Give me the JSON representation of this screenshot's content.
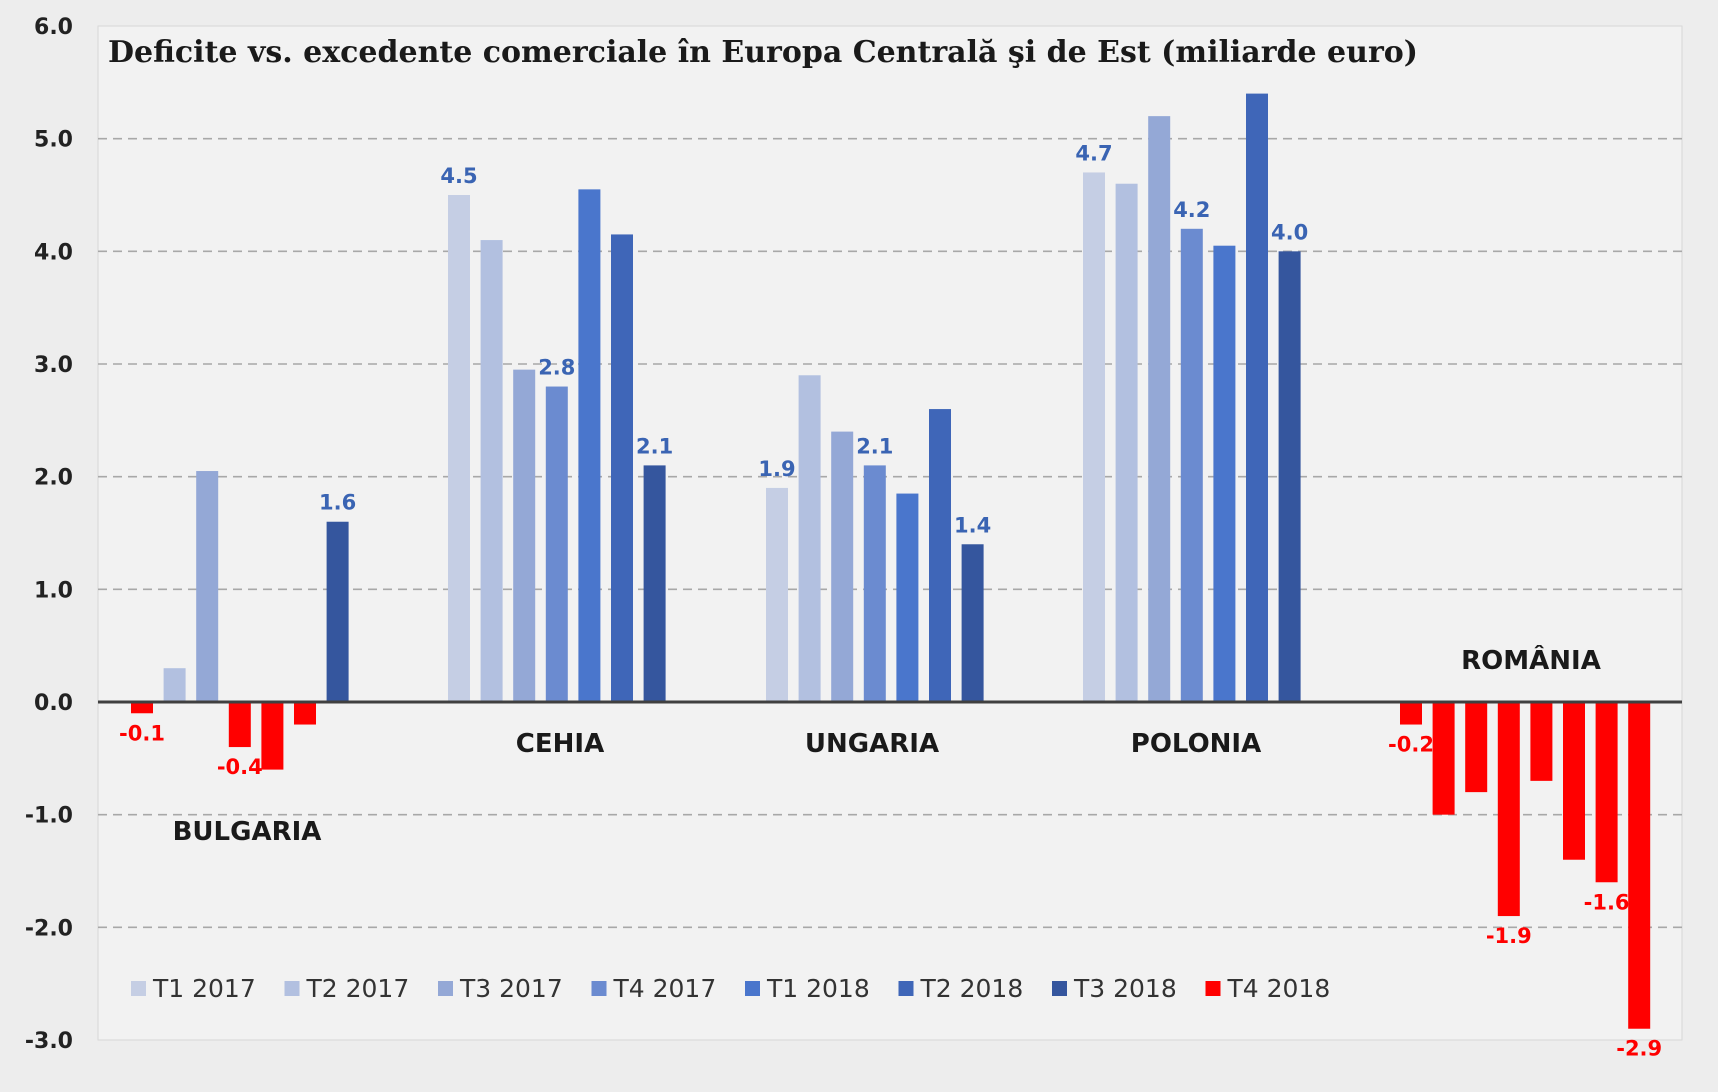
{
  "chart_data": {
    "type": "bar",
    "title": "Deficite vs. excedente comerciale în Europa Centrală şi de Est (miliarde euro)",
    "ylim": [
      -3.0,
      6.0
    ],
    "yticks": [
      "6.0",
      "5.0",
      "4.0",
      "3.0",
      "2.0",
      "1.0",
      "0.0",
      "-1.0",
      "-2.0",
      "-3.0"
    ],
    "grid": true,
    "legend_position": "bottom-left",
    "negative_color": "#ff0000",
    "categories": [
      "BULGARIA",
      "CEHIA",
      "UNGARIA",
      "POLONIA",
      "ROMÂNIA"
    ],
    "series": [
      {
        "name": "T1 2017",
        "color": "#c5cee4",
        "values": [
          -0.1,
          4.5,
          1.9,
          4.7,
          -0.2
        ]
      },
      {
        "name": "T2 2017",
        "color": "#b2c0e0",
        "values": [
          0.3,
          4.1,
          2.9,
          4.6,
          -1.0
        ]
      },
      {
        "name": "T3 2017",
        "color": "#94a8d6",
        "values": [
          2.05,
          2.95,
          2.4,
          5.2,
          -0.8
        ]
      },
      {
        "name": "T4 2017",
        "color": "#6b8bd0",
        "values": [
          -0.4,
          2.8,
          2.1,
          4.2,
          -1.9
        ]
      },
      {
        "name": "T1 2018",
        "color": "#4a76cc",
        "values": [
          -0.6,
          4.55,
          1.85,
          4.05,
          -0.7
        ]
      },
      {
        "name": "T2 2018",
        "color": "#3f66b8",
        "values": [
          -0.2,
          4.15,
          2.6,
          5.4,
          -1.4
        ]
      },
      {
        "name": "T3 2018",
        "color": "#35569e",
        "values": [
          1.6,
          2.1,
          1.4,
          4.0,
          -1.6
        ]
      },
      {
        "name": "T4 2018",
        "color": "#ff0000",
        "values": [
          null,
          null,
          null,
          null,
          -2.9
        ]
      }
    ],
    "data_labels": [
      {
        "category": "BULGARIA",
        "series": "T1 2017",
        "text": "-0.1"
      },
      {
        "category": "BULGARIA",
        "series": "T4 2017",
        "text": "-0.4"
      },
      {
        "category": "BULGARIA",
        "series": "T3 2018",
        "text": "1.6"
      },
      {
        "category": "CEHIA",
        "series": "T1 2017",
        "text": "4.5"
      },
      {
        "category": "CEHIA",
        "series": "T4 2017",
        "text": "2.8"
      },
      {
        "category": "CEHIA",
        "series": "T3 2018",
        "text": "2.1"
      },
      {
        "category": "UNGARIA",
        "series": "T1 2017",
        "text": "1.9"
      },
      {
        "category": "UNGARIA",
        "series": "T4 2017",
        "text": "2.1"
      },
      {
        "category": "UNGARIA",
        "series": "T3 2018",
        "text": "1.4"
      },
      {
        "category": "POLONIA",
        "series": "T1 2017",
        "text": "4.7"
      },
      {
        "category": "POLONIA",
        "series": "T4 2017",
        "text": "4.2"
      },
      {
        "category": "POLONIA",
        "series": "T3 2018",
        "text": "4.0"
      },
      {
        "category": "ROMÂNIA",
        "series": "T1 2017",
        "text": "-0.2"
      },
      {
        "category": "ROMÂNIA",
        "series": "T4 2017",
        "text": "-1.9"
      },
      {
        "category": "ROMÂNIA",
        "series": "T3 2018",
        "text": "-1.6"
      },
      {
        "category": "ROMÂNIA",
        "series": "T4 2018",
        "text": "-2.9"
      }
    ]
  }
}
